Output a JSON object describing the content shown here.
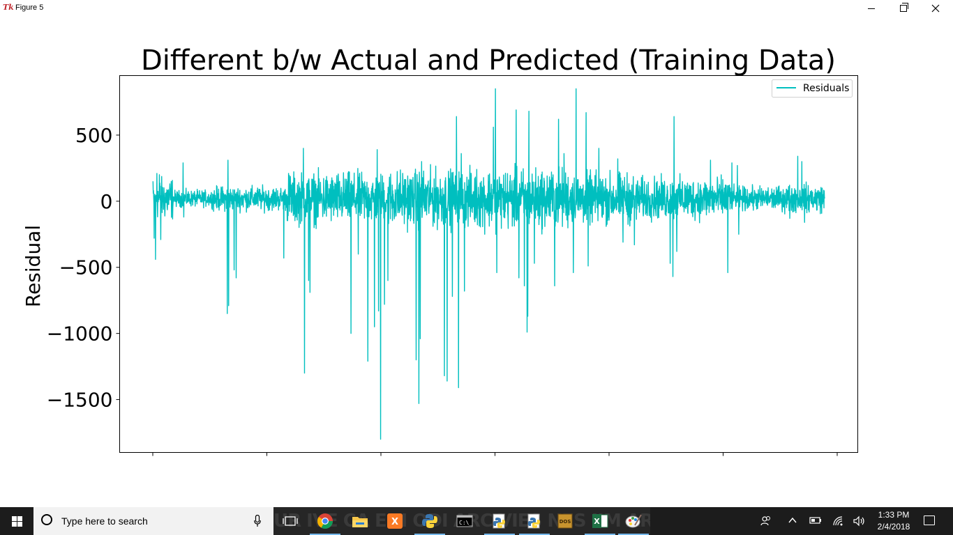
{
  "window": {
    "title": "Figure 5",
    "logo_icon": "tk-feather-icon"
  },
  "chart_data": {
    "type": "line",
    "title": "Different b/w Actual and Predicted (Training Data)",
    "xlabel": "",
    "ylabel": "Residual",
    "ylim": [
      -1900,
      950
    ],
    "yticks": [
      500,
      0,
      -500,
      -1000,
      -1500
    ],
    "ytick_labels": [
      "500",
      "0",
      "−500",
      "−1000",
      "−1500"
    ],
    "xtick_count": 7,
    "xtick_labels": [
      "",
      "",
      "",
      "",
      "",
      "",
      ""
    ],
    "legend": {
      "position": "upper-right",
      "entries": [
        "Residuals"
      ]
    },
    "series": [
      {
        "name": "Residuals",
        "color": "#00bfbf",
        "n_points": 2950,
        "baseline": 20,
        "spikes": [
          [
            0.0,
            150
          ],
          [
            0.002,
            -280
          ],
          [
            0.004,
            -440
          ],
          [
            0.006,
            210
          ],
          [
            0.01,
            200
          ],
          [
            0.012,
            -290
          ],
          [
            0.045,
            290
          ],
          [
            0.046,
            -120
          ],
          [
            0.111,
            -850
          ],
          [
            0.113,
            -790
          ],
          [
            0.112,
            310
          ],
          [
            0.124,
            -580
          ],
          [
            0.121,
            -520
          ],
          [
            0.195,
            -430
          ],
          [
            0.202,
            210
          ],
          [
            0.226,
            -1300
          ],
          [
            0.224,
            400
          ],
          [
            0.234,
            -690
          ],
          [
            0.232,
            -600
          ],
          [
            0.295,
            -1000
          ],
          [
            0.306,
            -400
          ],
          [
            0.32,
            -1210
          ],
          [
            0.312,
            150
          ],
          [
            0.33,
            -950
          ],
          [
            0.334,
            390
          ],
          [
            0.339,
            -1800
          ],
          [
            0.336,
            -830
          ],
          [
            0.345,
            -780
          ],
          [
            0.35,
            -600
          ],
          [
            0.396,
            -1530
          ],
          [
            0.392,
            -1200
          ],
          [
            0.398,
            -1040
          ],
          [
            0.4,
            300
          ],
          [
            0.434,
            -1320
          ],
          [
            0.438,
            -1360
          ],
          [
            0.446,
            -720
          ],
          [
            0.452,
            640
          ],
          [
            0.455,
            -1410
          ],
          [
            0.459,
            360
          ],
          [
            0.464,
            -680
          ],
          [
            0.51,
            850
          ],
          [
            0.507,
            560
          ],
          [
            0.512,
            -540
          ],
          [
            0.541,
            690
          ],
          [
            0.545,
            -580
          ],
          [
            0.56,
            680
          ],
          [
            0.553,
            -640
          ],
          [
            0.568,
            -470
          ],
          [
            0.558,
            -870
          ],
          [
            0.557,
            -990
          ],
          [
            0.604,
            620
          ],
          [
            0.598,
            -640
          ],
          [
            0.612,
            360
          ],
          [
            0.63,
            850
          ],
          [
            0.626,
            -540
          ],
          [
            0.645,
            670
          ],
          [
            0.648,
            -490
          ],
          [
            0.664,
            400
          ],
          [
            0.692,
            320
          ],
          [
            0.7,
            -310
          ],
          [
            0.717,
            -330
          ],
          [
            0.77,
            -470
          ],
          [
            0.776,
            640
          ],
          [
            0.774,
            -570
          ],
          [
            0.78,
            -380
          ],
          [
            0.83,
            310
          ],
          [
            0.862,
            290
          ],
          [
            0.856,
            -540
          ],
          [
            0.87,
            270
          ],
          [
            0.872,
            -250
          ],
          [
            0.948,
            -130
          ],
          [
            0.96,
            340
          ],
          [
            0.966,
            300
          ],
          [
            0.97,
            -160
          ],
          [
            1.0,
            20
          ]
        ]
      }
    ]
  },
  "taskbar": {
    "search_placeholder": "Type here to search",
    "background_glyphs": "UR IVE CA ENI ODI ARC VIES NES IIM ARK VUN ANI TSO IOIL ITR ESS AD EM PAK HAR ARC CHE",
    "apps": [
      {
        "name": "task-view-icon"
      },
      {
        "name": "chrome-icon"
      },
      {
        "name": "file-explorer-icon"
      },
      {
        "name": "xampp-icon"
      },
      {
        "name": "python-icon"
      },
      {
        "name": "command-prompt-icon"
      },
      {
        "name": "python-launcher-icon"
      },
      {
        "name": "python-idle-icon"
      },
      {
        "name": "dosbox-icon"
      },
      {
        "name": "excel-icon"
      },
      {
        "name": "paint-icon"
      }
    ],
    "clock_time": "1:33 PM",
    "clock_date": "2/4/2018"
  }
}
